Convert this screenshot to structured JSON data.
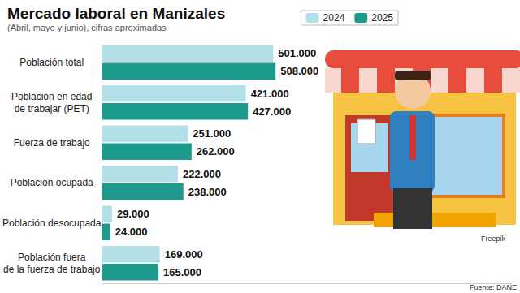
{
  "chart_data": {
    "type": "bar",
    "title": "Mercado laboral en Manizales",
    "subtitle": "(Abril, mayo y junio), cifras aproximadas",
    "orientation": "horizontal",
    "categories": [
      "Población total",
      "Población en edad\nde trabajar (PET)",
      "Fuerza de trabajo",
      "Población ocupada",
      "Población desocupada",
      "Población fuera\nde la fuerza de trabajo"
    ],
    "series": [
      {
        "name": "2024",
        "color": "#b3e0e8",
        "values": [
          501000,
          421000,
          251000,
          222000,
          29000,
          169000
        ],
        "value_labels": [
          "501.000",
          "421.000",
          "251.000",
          "222.000",
          "29.000",
          "169.000"
        ]
      },
      {
        "name": "2025",
        "color": "#1c9a8c",
        "values": [
          508000,
          427000,
          262000,
          238000,
          24000,
          165000
        ],
        "value_labels": [
          "508.000",
          "427.000",
          "262.000",
          "238.000",
          "24.000",
          "165.000"
        ]
      }
    ],
    "xlim": [
      0,
      1200000
    ],
    "xticks": [],
    "grid": false,
    "legend": "top-right",
    "data_labels": true,
    "tick_labels": "y",
    "annotations": {
      "credit": "Freepik",
      "source": "Fuente: DANE"
    }
  }
}
